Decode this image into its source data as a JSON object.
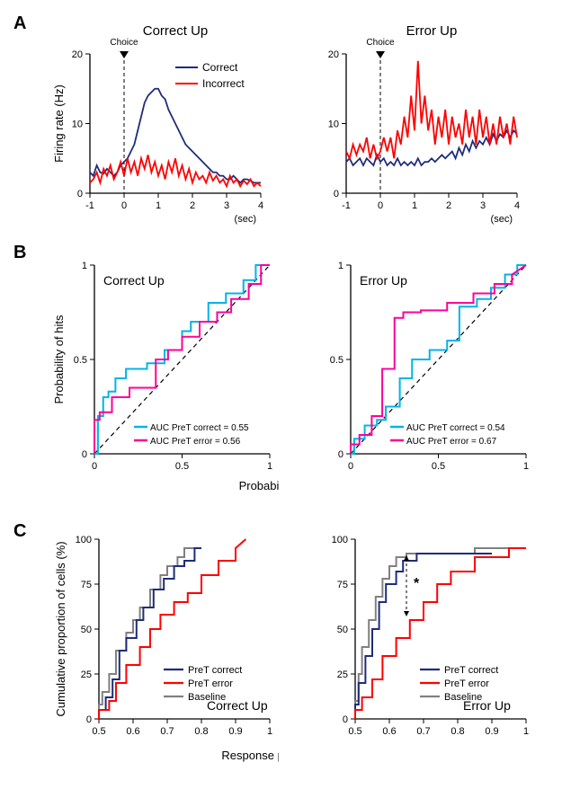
{
  "colors": {
    "navy": "#1e2d7a",
    "red": "#ff0000",
    "cyan": "#00b4e8",
    "magenta": "#ff0099",
    "gray": "#808080",
    "black": "#000000"
  },
  "panelA": {
    "left": {
      "title": "Correct Up",
      "ylabel": "Firing rate (Hz)",
      "xlabel": "(sec)",
      "choice_label": "Choice",
      "xlim": [
        -1,
        4
      ],
      "ylim": [
        0,
        20
      ],
      "xtick": [
        -1,
        0,
        1,
        2,
        3,
        4
      ],
      "ytick": [
        0,
        10,
        20
      ],
      "legend": [
        "Correct",
        "Incorrect"
      ],
      "series": {
        "correct": {
          "color": "navy",
          "x": [
            -1,
            -0.9,
            -0.8,
            -0.7,
            -0.6,
            -0.5,
            -0.4,
            -0.3,
            -0.2,
            -0.1,
            0,
            0.1,
            0.2,
            0.3,
            0.4,
            0.5,
            0.6,
            0.7,
            0.8,
            0.9,
            1,
            1.1,
            1.2,
            1.3,
            1.4,
            1.5,
            1.6,
            1.7,
            1.8,
            1.9,
            2,
            2.1,
            2.2,
            2.3,
            2.4,
            2.5,
            2.6,
            2.7,
            2.8,
            2.9,
            3,
            3.1,
            3.2,
            3.3,
            3.4,
            3.5,
            3.6,
            3.7,
            3.8,
            3.9,
            4
          ],
          "y": [
            3,
            2.5,
            4,
            3,
            2.8,
            3.5,
            3,
            2.5,
            3,
            4,
            4.5,
            5,
            6,
            7,
            9,
            11,
            13,
            14,
            14.5,
            15,
            15,
            14,
            13.5,
            12,
            11,
            10,
            9,
            8,
            7,
            6.5,
            6,
            5.5,
            5,
            4.5,
            4,
            3.5,
            3,
            3,
            2.5,
            2.5,
            2,
            2,
            2.5,
            2,
            1.5,
            2,
            2,
            1.8,
            1.5,
            1.5,
            1.5
          ]
        },
        "incorrect": {
          "color": "red",
          "x": [
            -1,
            -0.9,
            -0.8,
            -0.7,
            -0.6,
            -0.5,
            -0.4,
            -0.3,
            -0.2,
            -0.1,
            0,
            0.1,
            0.2,
            0.3,
            0.4,
            0.5,
            0.6,
            0.7,
            0.8,
            0.9,
            1,
            1.1,
            1.2,
            1.3,
            1.4,
            1.5,
            1.6,
            1.7,
            1.8,
            1.9,
            2,
            2.1,
            2.2,
            2.3,
            2.4,
            2.5,
            2.6,
            2.7,
            2.8,
            2.9,
            3,
            3.1,
            3.2,
            3.3,
            3.4,
            3.5,
            3.6,
            3.7,
            3.8,
            3.9,
            4
          ],
          "y": [
            1.5,
            2,
            3,
            1.5,
            3.5,
            2.5,
            4,
            2,
            3,
            4.5,
            2.5,
            5,
            3,
            4.5,
            2.5,
            5,
            3.5,
            5.5,
            3,
            4.5,
            2.5,
            4,
            2,
            4.5,
            3,
            5,
            2.5,
            4,
            2,
            3.5,
            1.5,
            3,
            2,
            2.5,
            1.5,
            3,
            1.8,
            2.5,
            1.5,
            2,
            1,
            2.5,
            1.5,
            2,
            1,
            1.8,
            1.3,
            2,
            1,
            1.5,
            1
          ]
        }
      }
    },
    "right": {
      "title": "Error Up",
      "choice_label": "Choice",
      "xlim": [
        -1,
        4
      ],
      "ylim": [
        0,
        20
      ],
      "xtick": [
        -1,
        0,
        1,
        2,
        3,
        4
      ],
      "ytick": [
        0,
        10,
        20
      ],
      "series": {
        "correct": {
          "color": "navy",
          "x": [
            -1,
            -0.9,
            -0.8,
            -0.7,
            -0.6,
            -0.5,
            -0.4,
            -0.3,
            -0.2,
            -0.1,
            0,
            0.1,
            0.2,
            0.3,
            0.4,
            0.5,
            0.6,
            0.7,
            0.8,
            0.9,
            1,
            1.1,
            1.2,
            1.3,
            1.4,
            1.5,
            1.6,
            1.7,
            1.8,
            1.9,
            2,
            2.1,
            2.2,
            2.3,
            2.4,
            2.5,
            2.6,
            2.7,
            2.8,
            2.9,
            3,
            3.1,
            3.2,
            3.3,
            3.4,
            3.5,
            3.6,
            3.7,
            3.8,
            3.9,
            4
          ],
          "y": [
            4.5,
            5,
            4,
            4.5,
            5,
            4,
            5,
            4.5,
            4,
            5.5,
            4.5,
            5,
            4,
            4.5,
            4,
            5,
            4,
            4.5,
            4,
            4.5,
            4,
            5,
            4,
            4.5,
            4.5,
            5,
            4.5,
            5,
            5.5,
            5,
            5.5,
            6,
            5,
            6.5,
            5.5,
            7,
            6,
            7.5,
            6.5,
            7.5,
            7,
            8,
            7,
            8.5,
            7.5,
            8.5,
            8,
            9,
            8,
            9,
            8.5
          ]
        },
        "incorrect": {
          "color": "red",
          "x": [
            -1,
            -0.9,
            -0.8,
            -0.7,
            -0.6,
            -0.5,
            -0.4,
            -0.3,
            -0.2,
            -0.1,
            0,
            0.1,
            0.2,
            0.3,
            0.4,
            0.5,
            0.6,
            0.7,
            0.8,
            0.9,
            1,
            1.1,
            1.2,
            1.3,
            1.4,
            1.5,
            1.6,
            1.7,
            1.8,
            1.9,
            2,
            2.1,
            2.2,
            2.3,
            2.4,
            2.5,
            2.6,
            2.7,
            2.8,
            2.9,
            3,
            3.1,
            3.2,
            3.3,
            3.4,
            3.5,
            3.6,
            3.7,
            3.8,
            3.9,
            4
          ],
          "y": [
            6,
            5,
            7,
            5.5,
            7,
            6,
            8,
            5,
            7,
            5,
            6,
            8,
            6,
            8,
            5,
            9,
            7,
            11,
            8,
            14,
            9,
            19,
            10,
            14,
            9,
            12,
            7,
            11,
            8,
            12,
            7,
            11,
            8,
            10,
            7,
            12,
            8,
            11,
            7,
            12,
            8,
            11,
            7,
            10,
            7,
            11,
            8,
            10,
            7,
            11,
            8
          ]
        }
      }
    }
  },
  "panelB": {
    "ylabel": "Probability of hits",
    "xlabel": "Probability of false alarms",
    "left": {
      "title": "Correct Up",
      "auc_correct": "AUC PreT correct = 0.55",
      "auc_error": "AUC PreT error = 0.56",
      "series": {
        "correct": {
          "color": "cyan",
          "x": [
            0,
            0.02,
            0.02,
            0.05,
            0.05,
            0.08,
            0.08,
            0.12,
            0.12,
            0.18,
            0.18,
            0.25,
            0.25,
            0.3,
            0.3,
            0.4,
            0.4,
            0.5,
            0.5,
            0.55,
            0.55,
            0.65,
            0.65,
            0.75,
            0.75,
            0.85,
            0.85,
            0.92,
            0.92,
            1
          ],
          "y": [
            0,
            0,
            0.2,
            0.2,
            0.3,
            0.3,
            0.33,
            0.33,
            0.4,
            0.4,
            0.45,
            0.45,
            0.45,
            0.45,
            0.48,
            0.48,
            0.55,
            0.55,
            0.65,
            0.65,
            0.7,
            0.7,
            0.8,
            0.8,
            0.85,
            0.85,
            0.92,
            0.92,
            1,
            1
          ]
        },
        "error": {
          "color": "magenta",
          "x": [
            0,
            0,
            0.03,
            0.03,
            0.1,
            0.1,
            0.15,
            0.15,
            0.2,
            0.2,
            0.28,
            0.28,
            0.35,
            0.35,
            0.42,
            0.42,
            0.5,
            0.5,
            0.6,
            0.6,
            0.7,
            0.7,
            0.78,
            0.78,
            0.88,
            0.88,
            0.95,
            0.95,
            1
          ],
          "y": [
            0,
            0.18,
            0.18,
            0.22,
            0.22,
            0.3,
            0.3,
            0.3,
            0.3,
            0.35,
            0.35,
            0.35,
            0.35,
            0.5,
            0.5,
            0.55,
            0.55,
            0.62,
            0.62,
            0.7,
            0.7,
            0.75,
            0.75,
            0.82,
            0.82,
            0.9,
            0.9,
            1,
            1
          ]
        }
      }
    },
    "right": {
      "title": "Error Up",
      "auc_correct": "AUC PreT correct = 0.54",
      "auc_error": "AUC PreT error = 0.67",
      "series": {
        "correct": {
          "color": "cyan",
          "x": [
            0,
            0.02,
            0.02,
            0.08,
            0.08,
            0.15,
            0.15,
            0.2,
            0.2,
            0.28,
            0.28,
            0.35,
            0.35,
            0.45,
            0.45,
            0.55,
            0.55,
            0.62,
            0.62,
            0.72,
            0.72,
            0.8,
            0.8,
            0.88,
            0.88,
            0.95,
            0.95,
            1
          ],
          "y": [
            0,
            0,
            0.08,
            0.08,
            0.15,
            0.15,
            0.18,
            0.18,
            0.25,
            0.25,
            0.4,
            0.4,
            0.5,
            0.5,
            0.55,
            0.55,
            0.6,
            0.6,
            0.78,
            0.78,
            0.82,
            0.82,
            0.88,
            0.88,
            0.95,
            0.95,
            1,
            1
          ]
        },
        "error": {
          "color": "magenta",
          "x": [
            0,
            0,
            0.05,
            0.05,
            0.12,
            0.12,
            0.18,
            0.18,
            0.18,
            0.25,
            0.25,
            0.3,
            0.3,
            0.4,
            0.4,
            0.55,
            0.55,
            0.7,
            0.7,
            0.82,
            0.82,
            0.92,
            0.92,
            1
          ],
          "y": [
            0,
            0.05,
            0.05,
            0.1,
            0.1,
            0.2,
            0.2,
            0.45,
            0.45,
            0.45,
            0.72,
            0.72,
            0.75,
            0.75,
            0.76,
            0.76,
            0.8,
            0.8,
            0.85,
            0.85,
            0.9,
            0.9,
            0.95,
            1
          ]
        }
      }
    }
  },
  "panelC": {
    "ylabel": "Cumulative proportion of cells (%)",
    "xlabel": "Response prediction index (RPI)",
    "legend": [
      "PreT correct",
      "PreT error",
      "Baseline"
    ],
    "left": {
      "title": "Correct Up",
      "series": {
        "baseline": {
          "color": "gray",
          "x": [
            0.5,
            0.5,
            0.51,
            0.51,
            0.53,
            0.53,
            0.55,
            0.55,
            0.58,
            0.58,
            0.6,
            0.6,
            0.62,
            0.62,
            0.65,
            0.65,
            0.68,
            0.68,
            0.7,
            0.7,
            0.73,
            0.73,
            0.75,
            0.75,
            0.78
          ],
          "y": [
            0,
            8,
            8,
            15,
            15,
            25,
            25,
            38,
            38,
            48,
            48,
            55,
            55,
            62,
            62,
            72,
            72,
            80,
            80,
            85,
            85,
            90,
            90,
            95,
            95
          ]
        },
        "correct": {
          "color": "navy",
          "x": [
            0.5,
            0.5,
            0.52,
            0.52,
            0.54,
            0.54,
            0.56,
            0.56,
            0.58,
            0.58,
            0.61,
            0.61,
            0.63,
            0.63,
            0.66,
            0.66,
            0.69,
            0.69,
            0.72,
            0.72,
            0.75,
            0.75,
            0.78,
            0.78,
            0.8
          ],
          "y": [
            0,
            5,
            5,
            12,
            12,
            22,
            22,
            38,
            38,
            45,
            45,
            55,
            55,
            62,
            62,
            72,
            72,
            78,
            78,
            85,
            85,
            88,
            88,
            95,
            95
          ]
        },
        "error": {
          "color": "red",
          "x": [
            0.5,
            0.5,
            0.53,
            0.53,
            0.55,
            0.55,
            0.58,
            0.58,
            0.62,
            0.62,
            0.65,
            0.65,
            0.68,
            0.68,
            0.72,
            0.72,
            0.76,
            0.76,
            0.8,
            0.8,
            0.85,
            0.85,
            0.9,
            0.9,
            0.93
          ],
          "y": [
            0,
            5,
            5,
            10,
            10,
            20,
            20,
            30,
            30,
            40,
            40,
            50,
            50,
            58,
            58,
            65,
            65,
            70,
            70,
            80,
            80,
            88,
            88,
            95,
            100
          ]
        }
      }
    },
    "right": {
      "title": "Error Up",
      "star": "*",
      "series": {
        "baseline": {
          "color": "gray",
          "x": [
            0.5,
            0.5,
            0.51,
            0.51,
            0.52,
            0.52,
            0.54,
            0.54,
            0.56,
            0.56,
            0.58,
            0.58,
            0.6,
            0.6,
            0.62,
            0.62,
            0.65,
            0.65,
            0.85,
            0.85,
            0.95
          ],
          "y": [
            0,
            10,
            10,
            25,
            25,
            40,
            40,
            55,
            55,
            68,
            68,
            78,
            78,
            85,
            85,
            90,
            90,
            92,
            92,
            95,
            95
          ]
        },
        "correct": {
          "color": "navy",
          "x": [
            0.5,
            0.5,
            0.51,
            0.51,
            0.53,
            0.53,
            0.55,
            0.55,
            0.57,
            0.57,
            0.59,
            0.59,
            0.62,
            0.62,
            0.64,
            0.64,
            0.68,
            0.68,
            0.9
          ],
          "y": [
            0,
            8,
            8,
            20,
            20,
            35,
            35,
            50,
            50,
            65,
            65,
            75,
            75,
            82,
            82,
            88,
            88,
            92,
            92
          ]
        },
        "error": {
          "color": "red",
          "x": [
            0.5,
            0.5,
            0.52,
            0.52,
            0.55,
            0.55,
            0.58,
            0.58,
            0.62,
            0.62,
            0.66,
            0.66,
            0.7,
            0.7,
            0.74,
            0.74,
            0.78,
            0.78,
            0.85,
            0.85,
            0.95,
            0.95,
            1
          ],
          "y": [
            0,
            5,
            5,
            12,
            12,
            22,
            22,
            35,
            35,
            45,
            45,
            55,
            55,
            65,
            65,
            75,
            75,
            82,
            82,
            90,
            90,
            95,
            95
          ]
        }
      }
    }
  }
}
